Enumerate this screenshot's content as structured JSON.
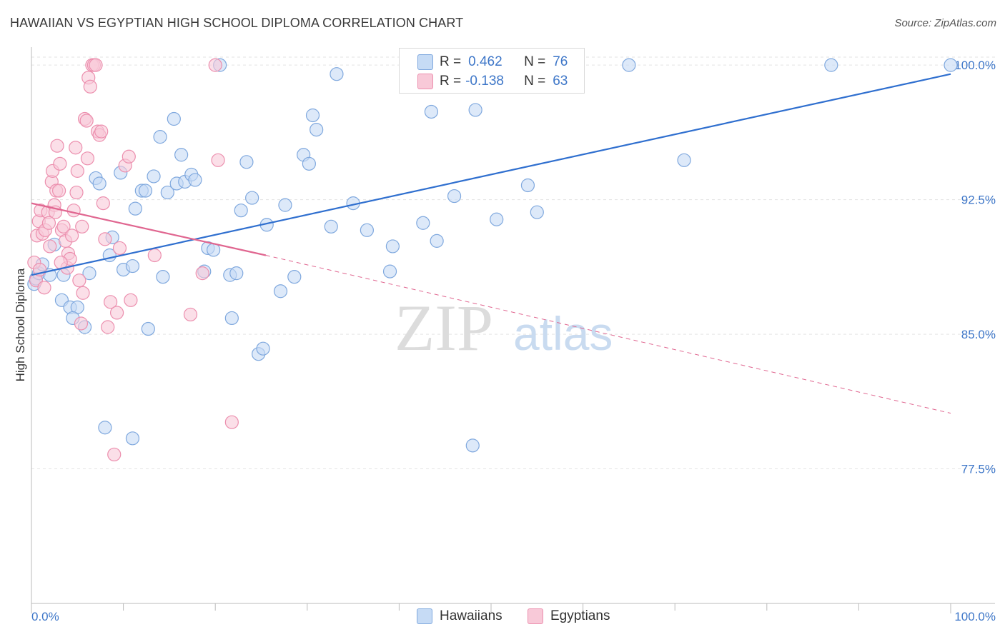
{
  "title": "HAWAIIAN VS EGYPTIAN HIGH SCHOOL DIPLOMA CORRELATION CHART",
  "source": "Source: ZipAtlas.com",
  "watermark": {
    "zip": "ZIP",
    "atlas": "atlas"
  },
  "legend_top": {
    "r_label": "R =",
    "n_label": "N =",
    "rows": [
      {
        "r": "0.462",
        "n": "76"
      },
      {
        "r": "-0.138",
        "n": "63"
      }
    ]
  },
  "colors": {
    "hawaiians_fill": "#c6dbf5",
    "hawaiians_stroke": "#7fa8de",
    "hawaiians_line": "#2f6fcf",
    "egyptians_fill": "#f8c9d8",
    "egyptians_stroke": "#ec8fae",
    "egyptians_line": "#e06690",
    "axis_label": "#3d76c8",
    "grid": "#e3e3e3"
  },
  "chart_data": {
    "type": "scatter",
    "title": "HAWAIIAN VS EGYPTIAN HIGH SCHOOL DIPLOMA CORRELATION CHART",
    "xlabel": "",
    "ylabel": "High School Diploma",
    "xlim": [
      0,
      100
    ],
    "ylim": [
      70.0,
      101.0
    ],
    "x_tick_labels": [
      "0.0%",
      "100.0%"
    ],
    "y_ticks": [
      {
        "value": 100.0,
        "label": "100.0%"
      },
      {
        "value": 92.5,
        "label": "92.5%"
      },
      {
        "value": 85.0,
        "label": "85.0%"
      },
      {
        "value": 77.5,
        "label": "77.5%"
      }
    ],
    "grid": true,
    "legend": [
      "Hawaiians",
      "Egyptians"
    ],
    "series": [
      {
        "name": "Hawaiians",
        "r": 0.462,
        "n": 76,
        "trend": {
          "x": [
            0,
            100
          ],
          "y": [
            88.3,
            99.5
          ],
          "dashed_to": null
        },
        "points": [
          [
            0.3,
            87.8
          ],
          [
            0.5,
            88.1
          ],
          [
            0.8,
            88.4
          ],
          [
            1.2,
            88.9
          ],
          [
            2.0,
            88.3
          ],
          [
            2.5,
            90.0
          ],
          [
            3.5,
            88.3
          ],
          [
            3.3,
            86.9
          ],
          [
            4.2,
            86.5
          ],
          [
            5.0,
            86.5
          ],
          [
            4.5,
            85.9
          ],
          [
            5.8,
            85.4
          ],
          [
            6.3,
            88.4
          ],
          [
            7.0,
            93.7
          ],
          [
            7.4,
            93.4
          ],
          [
            8.0,
            79.8
          ],
          [
            8.5,
            89.4
          ],
          [
            8.8,
            90.4
          ],
          [
            9.7,
            94.0
          ],
          [
            10.0,
            88.6
          ],
          [
            11.0,
            88.8
          ],
          [
            11.3,
            92.0
          ],
          [
            11.0,
            79.2
          ],
          [
            12.0,
            93.0
          ],
          [
            12.4,
            93.0
          ],
          [
            12.7,
            85.3
          ],
          [
            13.3,
            93.8
          ],
          [
            14.0,
            96.0
          ],
          [
            14.3,
            88.2
          ],
          [
            14.8,
            92.9
          ],
          [
            15.5,
            97.0
          ],
          [
            15.8,
            93.4
          ],
          [
            16.3,
            95.0
          ],
          [
            16.7,
            93.5
          ],
          [
            17.4,
            93.9
          ],
          [
            17.8,
            93.6
          ],
          [
            18.8,
            88.5
          ],
          [
            19.2,
            89.8
          ],
          [
            19.8,
            89.7
          ],
          [
            20.5,
            100.0
          ],
          [
            21.6,
            88.3
          ],
          [
            21.8,
            85.9
          ],
          [
            22.3,
            88.4
          ],
          [
            22.8,
            91.9
          ],
          [
            23.4,
            94.6
          ],
          [
            24.0,
            92.6
          ],
          [
            24.7,
            83.9
          ],
          [
            25.2,
            84.2
          ],
          [
            25.6,
            91.1
          ],
          [
            27.1,
            87.4
          ],
          [
            27.6,
            92.2
          ],
          [
            28.6,
            88.2
          ],
          [
            29.6,
            95.0
          ],
          [
            30.2,
            94.5
          ],
          [
            30.6,
            97.2
          ],
          [
            31.0,
            96.4
          ],
          [
            32.6,
            91.0
          ],
          [
            33.2,
            99.5
          ],
          [
            35.0,
            92.3
          ],
          [
            36.5,
            90.8
          ],
          [
            39.0,
            88.5
          ],
          [
            39.3,
            89.9
          ],
          [
            42.6,
            91.2
          ],
          [
            43.5,
            97.4
          ],
          [
            44.1,
            90.2
          ],
          [
            46.0,
            92.7
          ],
          [
            48.0,
            78.8
          ],
          [
            48.3,
            97.5
          ],
          [
            50.0,
            100.0
          ],
          [
            50.6,
            91.4
          ],
          [
            54.0,
            93.3
          ],
          [
            55.0,
            91.8
          ],
          [
            65.0,
            100.0
          ],
          [
            71.0,
            94.7
          ],
          [
            87.0,
            100.0
          ],
          [
            100.0,
            100.0
          ]
        ]
      },
      {
        "name": "Egyptians",
        "r": -0.138,
        "n": 63,
        "trend": {
          "x": [
            0,
            25.5
          ],
          "y": [
            92.3,
            89.4
          ],
          "dashed_to": {
            "x": 100,
            "y": 80.6
          }
        },
        "points": [
          [
            0.3,
            89.0
          ],
          [
            0.5,
            88.0
          ],
          [
            0.6,
            90.5
          ],
          [
            0.8,
            91.3
          ],
          [
            1.0,
            91.9
          ],
          [
            1.2,
            90.6
          ],
          [
            1.5,
            90.8
          ],
          [
            1.8,
            91.8
          ],
          [
            2.0,
            89.9
          ],
          [
            2.2,
            93.5
          ],
          [
            2.3,
            94.1
          ],
          [
            2.5,
            92.2
          ],
          [
            2.7,
            93.0
          ],
          [
            2.8,
            95.5
          ],
          [
            3.0,
            93.0
          ],
          [
            3.1,
            94.5
          ],
          [
            3.3,
            90.8
          ],
          [
            3.5,
            91.0
          ],
          [
            3.7,
            90.2
          ],
          [
            3.9,
            88.7
          ],
          [
            4.0,
            89.5
          ],
          [
            4.2,
            89.2
          ],
          [
            4.4,
            90.5
          ],
          [
            4.6,
            91.9
          ],
          [
            4.8,
            95.4
          ],
          [
            5.0,
            94.1
          ],
          [
            5.2,
            88.0
          ],
          [
            5.4,
            85.6
          ],
          [
            5.6,
            87.3
          ],
          [
            5.8,
            97.0
          ],
          [
            6.0,
            96.9
          ],
          [
            6.2,
            99.3
          ],
          [
            6.4,
            98.8
          ],
          [
            6.6,
            100.0
          ],
          [
            6.8,
            100.0
          ],
          [
            7.0,
            100.0
          ],
          [
            7.2,
            96.3
          ],
          [
            7.4,
            96.1
          ],
          [
            7.6,
            96.3
          ],
          [
            7.8,
            92.3
          ],
          [
            8.0,
            90.3
          ],
          [
            8.3,
            85.4
          ],
          [
            8.6,
            86.8
          ],
          [
            9.0,
            78.3
          ],
          [
            9.3,
            86.2
          ],
          [
            9.6,
            89.8
          ],
          [
            10.2,
            94.4
          ],
          [
            10.6,
            94.9
          ],
          [
            10.8,
            86.9
          ],
          [
            13.4,
            89.4
          ],
          [
            17.3,
            86.1
          ],
          [
            18.6,
            88.4
          ],
          [
            20.0,
            100.0
          ],
          [
            20.3,
            94.7
          ],
          [
            21.8,
            80.1
          ],
          [
            2.6,
            91.8
          ],
          [
            1.9,
            91.2
          ],
          [
            0.9,
            88.6
          ],
          [
            1.4,
            87.6
          ],
          [
            3.2,
            89.0
          ],
          [
            4.9,
            92.9
          ],
          [
            5.5,
            91.0
          ],
          [
            6.1,
            94.8
          ]
        ]
      }
    ]
  },
  "legend_bottom": [
    {
      "label": "Hawaiians"
    },
    {
      "label": "Egyptians"
    }
  ]
}
